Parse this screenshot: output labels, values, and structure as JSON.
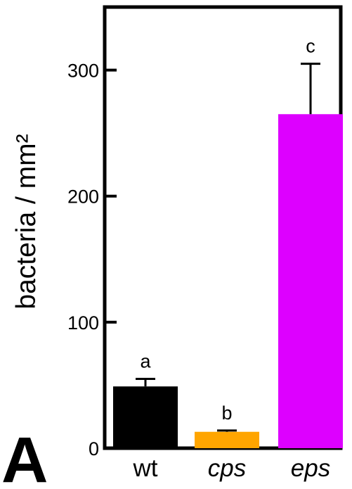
{
  "panel_label": "A",
  "chart_data": {
    "type": "bar",
    "categories": [
      "wt",
      "cps",
      "eps"
    ],
    "category_italic": [
      false,
      true,
      true
    ],
    "values": [
      49,
      13,
      265
    ],
    "error_upper": [
      55,
      14,
      305
    ],
    "significance": [
      "a",
      "b",
      "c"
    ],
    "colors": [
      "#000000",
      "#ffa500",
      "#dd00ff"
    ],
    "ylabel": "bacteria / mm²",
    "ylim": [
      0,
      350
    ],
    "yticks": [
      0,
      100,
      200,
      300
    ],
    "grid": false
  }
}
